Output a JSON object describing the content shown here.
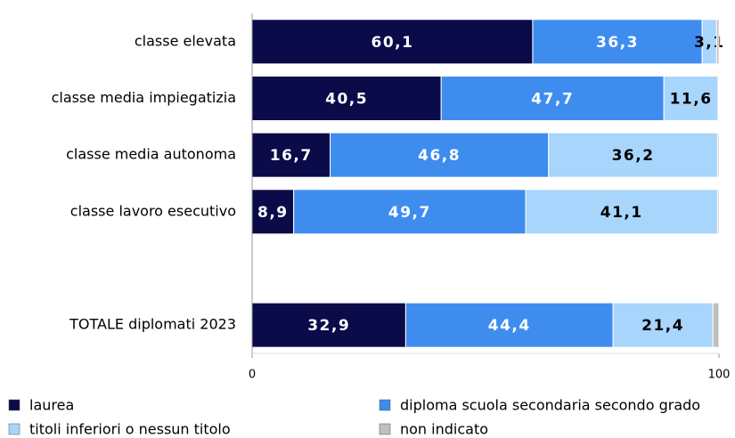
{
  "chart_data": {
    "type": "stacked-bar-horizontal",
    "categories": [
      "classe elevata",
      "classe media impiegatizia",
      "classe media autonoma",
      "classe lavoro esecutivo",
      null,
      "TOTALE diplomati 2023"
    ],
    "series": [
      {
        "name": "laurea",
        "color": "#0b0b4a",
        "values": [
          60.1,
          40.5,
          16.7,
          8.9,
          null,
          32.9
        ],
        "value_labels": [
          "60,1",
          "40,5",
          "16,7",
          "8,9",
          null,
          "32,9"
        ]
      },
      {
        "name": "diploma scuola secondaria secondo grado",
        "color": "#3f8cef",
        "values": [
          36.3,
          47.7,
          46.8,
          49.7,
          null,
          44.4
        ],
        "value_labels": [
          "36,3",
          "47,7",
          "46,8",
          "49,7",
          null,
          "44,4"
        ]
      },
      {
        "name": "titoli inferiori o nessun titolo",
        "color": "#a8d5fb",
        "values": [
          3.1,
          11.6,
          36.2,
          41.1,
          null,
          21.4
        ],
        "value_labels": [
          "3,1",
          "11,6",
          "36,2",
          "41,1",
          null,
          "21,4"
        ]
      },
      {
        "name": "non indicato",
        "color": "#bfbfbf",
        "values": [
          0.5,
          0.2,
          0.3,
          0.3,
          null,
          1.3
        ]
      }
    ],
    "xlim": [
      0,
      100
    ],
    "xticks": [
      0,
      100
    ],
    "legend": "bottom"
  }
}
